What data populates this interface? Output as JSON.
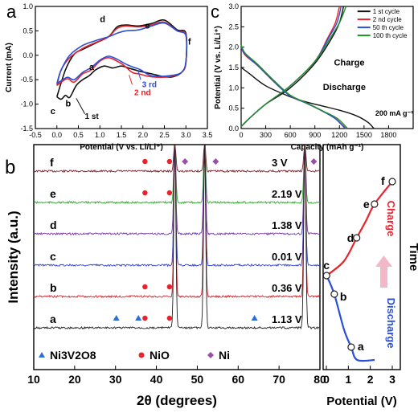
{
  "figure": {
    "panel_labels": {
      "a": "a",
      "b": "b",
      "c": "c"
    }
  },
  "chart_data": [
    {
      "panel": "a",
      "type": "line",
      "xlabel": "Potential (V vs. Li/Li⁺)",
      "ylabel": "Current (mA)",
      "xlim": [
        -0.5,
        3.5
      ],
      "ylim": [
        -1.5,
        1.0
      ],
      "xticks": [
        "-0.5",
        "0.0",
        "0.5",
        "1.0",
        "1.5",
        "2.0",
        "2.5",
        "3.0",
        "3.5"
      ],
      "yticks": [
        "-1.5",
        "-1.0",
        "-0.5",
        "0.0",
        "0.5",
        "1.0"
      ],
      "series": [
        {
          "name": "1 st",
          "color": "#111111",
          "x": [
            0.0,
            0.1,
            0.2,
            0.3,
            0.45,
            0.6,
            0.75,
            0.9,
            1.1,
            1.3,
            1.5,
            1.7,
            1.9,
            2.2,
            2.5,
            2.7,
            2.9,
            3.0,
            3.0,
            2.8,
            2.5,
            2.2,
            1.9,
            1.6,
            1.4,
            1.2,
            0.9,
            0.6,
            0.4,
            0.2,
            0.0
          ],
          "y": [
            -0.85,
            -0.9,
            -0.82,
            -0.86,
            -0.62,
            -0.5,
            -0.42,
            -0.3,
            -0.22,
            -0.26,
            -0.22,
            -0.27,
            -0.32,
            -0.38,
            -0.44,
            -0.44,
            -0.35,
            -0.15,
            0.45,
            0.52,
            0.72,
            0.65,
            0.6,
            0.62,
            0.58,
            0.38,
            0.25,
            0.12,
            0.02,
            -0.3,
            -0.85
          ]
        },
        {
          "name": "2 nd",
          "color": "#e8232e",
          "x": [
            0.0,
            0.1,
            0.25,
            0.4,
            0.6,
            0.8,
            1.0,
            1.2,
            1.4,
            1.55,
            1.75,
            1.9,
            2.2,
            2.6,
            2.9,
            3.0,
            3.0,
            2.8,
            2.5,
            2.2,
            1.9,
            1.6,
            1.4,
            1.2,
            0.9,
            0.6,
            0.3,
            0.1,
            0.0
          ],
          "y": [
            -0.62,
            -0.55,
            -0.48,
            -0.55,
            -0.38,
            -0.3,
            -0.12,
            -0.05,
            -0.12,
            -0.2,
            -0.35,
            -0.38,
            -0.44,
            -0.44,
            -0.35,
            -0.15,
            0.42,
            0.5,
            0.68,
            0.62,
            0.58,
            0.6,
            0.55,
            0.38,
            0.26,
            0.14,
            -0.05,
            -0.3,
            -0.62
          ]
        },
        {
          "name": "3 rd",
          "color": "#2b4fd6",
          "x": [
            0.0,
            0.1,
            0.25,
            0.4,
            0.6,
            0.8,
            1.0,
            1.2,
            1.4,
            1.6,
            1.8,
            1.95,
            2.2,
            2.6,
            2.9,
            3.0,
            3.0,
            2.8,
            2.5,
            2.2,
            1.9,
            1.6,
            1.4,
            1.2,
            0.9,
            0.6,
            0.3,
            0.1,
            0.0
          ],
          "y": [
            -0.58,
            -0.52,
            -0.45,
            -0.5,
            -0.35,
            -0.25,
            -0.1,
            -0.02,
            -0.08,
            -0.18,
            -0.25,
            -0.3,
            -0.42,
            -0.42,
            -0.35,
            -0.12,
            0.4,
            0.5,
            0.66,
            0.6,
            0.52,
            0.5,
            0.45,
            0.38,
            0.3,
            0.2,
            0.0,
            -0.3,
            -0.58
          ]
        }
      ],
      "labels": {
        "peak_a": "a",
        "peak_b": "b",
        "peak_c": "c",
        "peak_d": "d",
        "peak_e": "e",
        "peak_f": "f",
        "first": "1 st",
        "second": "2 nd",
        "third": "3 rd"
      }
    },
    {
      "panel": "c",
      "type": "line",
      "xlabel": "Capacity (mAh g⁻¹)",
      "ylabel": "Potential (V vs. Li/Li⁺)",
      "xlim": [
        0,
        2100
      ],
      "ylim": [
        0.0,
        3.0
      ],
      "xticks": [
        "0",
        "300",
        "600",
        "900",
        "1200",
        "1500",
        "1800"
      ],
      "yticks": [
        "0.0",
        "0.5",
        "1.0",
        "1.5",
        "2.0",
        "2.5",
        "3.0"
      ],
      "legend_position": "top-right",
      "annotations": {
        "charge": "Charge",
        "discharge": "Discharge",
        "rate": "200 mA g⁻¹"
      },
      "series": [
        {
          "name": "1 st cycle",
          "color": "#111111",
          "discharge": {
            "x": [
              0,
              100,
              300,
              600,
              800,
              1000,
              1200,
              1400,
              1550,
              1620
            ],
            "y": [
              1.5,
              1.35,
              1.05,
              0.78,
              0.65,
              0.55,
              0.45,
              0.32,
              0.15,
              0.0
            ]
          },
          "charge": {
            "x": [
              0,
              100,
              300,
              600,
              900,
              1100,
              1200,
              1250
            ],
            "y": [
              0.05,
              0.25,
              0.6,
              1.0,
              1.6,
              2.2,
              2.6,
              3.0
            ]
          }
        },
        {
          "name": "2 nd cycle",
          "color": "#e8232e",
          "discharge": {
            "x": [
              0,
              50,
              200,
              400,
              600,
              800,
              1000,
              1150,
              1280
            ],
            "y": [
              2.0,
              1.8,
              1.55,
              1.15,
              0.8,
              0.62,
              0.42,
              0.25,
              0.0
            ]
          },
          "charge": {
            "x": [
              0,
              100,
              300,
              600,
              900,
              1050,
              1150,
              1200
            ],
            "y": [
              0.05,
              0.25,
              0.6,
              1.05,
              1.65,
              2.2,
              2.6,
              3.0
            ]
          }
        },
        {
          "name": "50 th cycle",
          "color": "#2b4fd6",
          "discharge": {
            "x": [
              0,
              50,
              200,
              400,
              600,
              800,
              1000,
              1150,
              1270
            ],
            "y": [
              2.0,
              1.82,
              1.55,
              1.15,
              0.8,
              0.62,
              0.42,
              0.24,
              0.0
            ]
          },
          "charge": {
            "x": [
              0,
              100,
              300,
              600,
              900,
              1060,
              1170,
              1220
            ],
            "y": [
              0.05,
              0.25,
              0.6,
              1.05,
              1.65,
              2.2,
              2.6,
              3.0
            ]
          }
        },
        {
          "name": "100 th cycle",
          "color": "#1e8f2a",
          "discharge": {
            "x": [
              0,
              50,
              200,
              400,
              600,
              800,
              1000,
              1180,
              1300
            ],
            "y": [
              2.05,
              1.85,
              1.58,
              1.18,
              0.82,
              0.63,
              0.43,
              0.24,
              0.0
            ]
          },
          "charge": {
            "x": [
              0,
              100,
              300,
              600,
              900,
              1080,
              1200,
              1280
            ],
            "y": [
              0.05,
              0.25,
              0.6,
              1.05,
              1.65,
              2.2,
              2.6,
              3.0
            ]
          }
        }
      ]
    },
    {
      "panel": "b",
      "type": "line",
      "xlabel": "2θ (degrees)",
      "ylabel": "Intensity (a.u.)",
      "xlim": [
        10,
        80
      ],
      "xticks": [
        "10",
        "20",
        "30",
        "40",
        "50",
        "60",
        "70",
        "80"
      ],
      "big_peaks_2theta": [
        44.5,
        51.8,
        76.3
      ],
      "traces": [
        {
          "label": "f",
          "potential": "3 V",
          "color": "#7a1f2c"
        },
        {
          "label": "e",
          "potential": "2.19 V",
          "color": "#2fa82f"
        },
        {
          "label": "d",
          "potential": "1.38 V",
          "color": "#7a3aa8"
        },
        {
          "label": "c",
          "potential": "0.01 V",
          "color": "#2b3fd6"
        },
        {
          "label": "b",
          "potential": "0.36 V",
          "color": "#d4262e"
        },
        {
          "label": "a",
          "potential": "1.13 V",
          "color": "#222222"
        }
      ],
      "markers": {
        "Ni3V2O8": {
          "color": "#2b6fd6",
          "shape": "triangle",
          "trace": "a",
          "x": [
            30.2,
            35.6,
            64.0
          ]
        },
        "NiO_a": {
          "color": "#e8232e",
          "shape": "circle",
          "trace": "a",
          "x": [
            37.2,
            43.2
          ]
        },
        "NiO_b": {
          "color": "#e8232e",
          "shape": "circle",
          "trace": "b",
          "x": [
            37.2,
            43.2
          ]
        },
        "NiO_e": {
          "color": "#e8232e",
          "shape": "circle",
          "trace": "e",
          "x": [
            37.2,
            43.2
          ]
        },
        "NiO_f": {
          "color": "#e8232e",
          "shape": "circle",
          "trace": "f",
          "x": [
            37.2,
            43.2
          ]
        },
        "Ni_f": {
          "color": "#9b4fa8",
          "shape": "diamond",
          "trace": "f",
          "x": [
            47.0,
            54.5,
            78.5
          ]
        }
      },
      "legend": [
        {
          "shape": "triangle",
          "color": "#2b6fd6",
          "label": "Ni3V2O8"
        },
        {
          "shape": "circle",
          "color": "#e8232e",
          "label": "NiO"
        },
        {
          "shape": "diamond",
          "color": "#9b4fa8",
          "label": "Ni"
        }
      ]
    },
    {
      "panel": "b-right",
      "type": "line",
      "xlabel": "Potential (V)",
      "ylabel": "Time",
      "xlim": [
        0,
        3
      ],
      "xticks": [
        "0",
        "1",
        "2",
        "3"
      ],
      "points": [
        {
          "label": "a",
          "potential": 1.13
        },
        {
          "label": "b",
          "potential": 0.36
        },
        {
          "label": "c",
          "potential": 0.01
        },
        {
          "label": "d",
          "potential": 1.38
        },
        {
          "label": "e",
          "potential": 2.19
        },
        {
          "label": "f",
          "potential": 3.0
        }
      ],
      "charge_label": "Charge",
      "discharge_label": "Discharge",
      "charge_color": "#e8232e",
      "discharge_color": "#2b4fd6"
    }
  ]
}
